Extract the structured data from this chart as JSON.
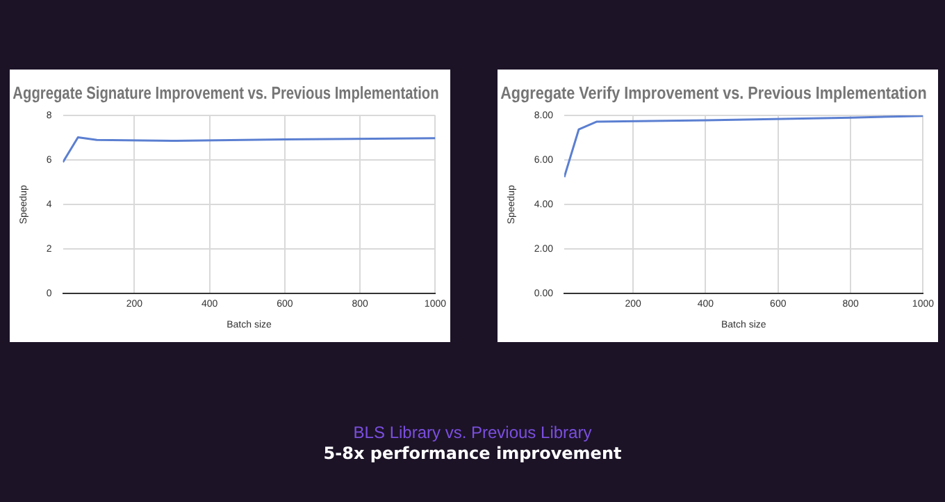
{
  "chart_data": [
    {
      "type": "line",
      "title": "Aggregate Signature Improvement vs. Previous Implementation",
      "xlabel": "Batch size",
      "ylabel": "Speedup",
      "x": [
        10,
        50,
        100,
        300,
        600,
        1000
      ],
      "series": [
        {
          "color": "#5b7fd1",
          "values": [
            5.9,
            7.02,
            6.9,
            6.86,
            6.92,
            6.98
          ]
        }
      ],
      "xlim": [
        10,
        1000
      ],
      "xticks": [
        200,
        400,
        600,
        800,
        1000
      ],
      "ylim": [
        0,
        8
      ],
      "yticks": [
        0,
        2,
        4,
        6,
        8
      ],
      "grid": true,
      "marker": "none",
      "line_style": "solid"
    },
    {
      "type": "line",
      "title": "Aggregate Verify Improvement vs. Previous Implementation",
      "xlabel": "Batch size",
      "ylabel": "Speedup",
      "x": [
        10,
        50,
        100,
        400,
        800,
        1000
      ],
      "series": [
        {
          "color": "#5b7fd1",
          "values": [
            5.23,
            7.37,
            7.72,
            7.78,
            7.9,
            7.98
          ]
        }
      ],
      "xlim": [
        10,
        1000
      ],
      "xticks": [
        200,
        400,
        600,
        800,
        1000
      ],
      "ylim": [
        0,
        8
      ],
      "yticks": [
        {
          "value": 0,
          "label": "0.00"
        },
        {
          "value": 2,
          "label": "2.00"
        },
        {
          "value": 4,
          "label": "4.00"
        },
        {
          "value": 6,
          "label": "6.00"
        },
        {
          "value": 8,
          "label": "8.00"
        }
      ],
      "grid": true,
      "marker": "none",
      "line_style": "solid"
    },
    {
      "type": "other",
      "annotations": [
        "BLS Library vs. Previous Library",
        "5-8x performance improvement"
      ]
    }
  ]
}
